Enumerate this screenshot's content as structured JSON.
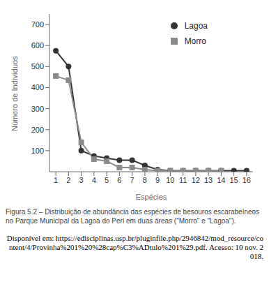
{
  "chart_data": {
    "type": "line",
    "x_label": "Espécies",
    "y_label": "Número de Indivíduos",
    "x": [
      1,
      2,
      3,
      4,
      5,
      6,
      7,
      8,
      9,
      10,
      11,
      12,
      13,
      14,
      15,
      16
    ],
    "series": [
      {
        "name": "Lagoa",
        "color": "#333333",
        "marker": "circle",
        "values": [
          575,
          500,
          100,
          75,
          65,
          55,
          55,
          30,
          10,
          5,
          5,
          5,
          5,
          5,
          5,
          5
        ]
      },
      {
        "name": "Morro",
        "color": "#8a8a8a",
        "marker": "square",
        "values": [
          455,
          435,
          140,
          60,
          50,
          20,
          20,
          10,
          5,
          5,
          5,
          5,
          5,
          5,
          null,
          null
        ]
      }
    ],
    "xlim": [
      0.5,
      16.5
    ],
    "xticks": [
      1,
      2,
      3,
      4,
      5,
      6,
      7,
      8,
      9,
      10,
      11,
      12,
      13,
      14,
      15,
      16
    ],
    "ylim": [
      0,
      750
    ],
    "yticks": [
      100,
      200,
      300,
      400,
      500,
      600,
      700
    ],
    "grid": false,
    "legend": "upper right",
    "caption": "Figura 5.2 – Distribuição de abundância das espécies de besouros escarabeíneos no Parque Municipal da Lagoa do Peri em duas áreas (\"Morro\" e \"Lagoa\").",
    "source": "Disponível em: https://edisciplinas.usp.br/pluginfile.php/2946842/mod_resource/content/4/Provinha%201%20%28cap%C3%ADtulo%201%29.pdf. Acesso: 10 nov. 2018."
  }
}
